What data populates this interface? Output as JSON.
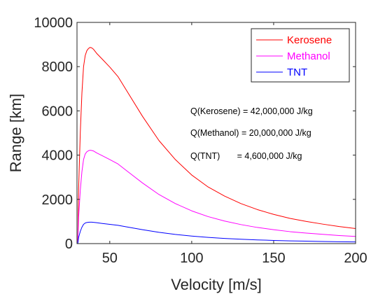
{
  "chart_data": {
    "type": "line",
    "xlabel": "Velocity [m/s]",
    "ylabel": "Range [km]",
    "xlim": [
      30,
      200
    ],
    "ylim": [
      0,
      10000
    ],
    "xticks": [
      50,
      100,
      150,
      200
    ],
    "yticks": [
      0,
      2000,
      4000,
      6000,
      8000,
      10000
    ],
    "grid": false,
    "legend_position": "top-right",
    "series": [
      {
        "name": "Kerosene",
        "color": "#ff0000",
        "x": [
          30.5,
          31,
          32,
          33,
          34,
          35,
          36,
          37,
          38,
          39,
          40,
          42,
          45,
          50,
          55,
          60,
          70,
          80,
          90,
          100,
          110,
          120,
          130,
          140,
          150,
          160,
          170,
          180,
          190,
          200
        ],
        "y": [
          100,
          2500,
          5000,
          6800,
          8000,
          8500,
          8720,
          8820,
          8870,
          8850,
          8790,
          8600,
          8370,
          7980,
          7550,
          6950,
          5750,
          4660,
          3800,
          3100,
          2560,
          2150,
          1810,
          1540,
          1320,
          1140,
          1000,
          880,
          770,
          680
        ]
      },
      {
        "name": "Methanol",
        "color": "#ff00ff",
        "x": [
          30.5,
          31,
          32,
          33,
          34,
          35,
          36,
          37,
          38,
          39,
          40,
          42,
          45,
          50,
          55,
          60,
          70,
          80,
          90,
          100,
          110,
          120,
          130,
          140,
          150,
          160,
          170,
          180,
          190,
          200
        ],
        "y": [
          50,
          1200,
          2400,
          3250,
          3800,
          4050,
          4150,
          4200,
          4220,
          4210,
          4190,
          4100,
          3990,
          3800,
          3600,
          3310,
          2740,
          2220,
          1810,
          1480,
          1220,
          1020,
          860,
          730,
          630,
          540,
          475,
          420,
          365,
          325
        ]
      },
      {
        "name": "TNT",
        "color": "#0000ff",
        "x": [
          30.5,
          31,
          32,
          33,
          34,
          35,
          36,
          37,
          38,
          39,
          40,
          42,
          45,
          50,
          55,
          60,
          70,
          80,
          90,
          100,
          110,
          120,
          130,
          140,
          150,
          160,
          170,
          180,
          190,
          200
        ],
        "y": [
          10,
          280,
          550,
          740,
          870,
          930,
          955,
          965,
          970,
          968,
          963,
          945,
          915,
          870,
          825,
          760,
          630,
          510,
          415,
          340,
          280,
          235,
          198,
          168,
          144,
          124,
          109,
          96,
          84,
          74
        ]
      }
    ],
    "annotations": [
      "Q(Kerosene) = 42,000,000 J/kg",
      "Q(Methanol) = 20,000,000 J/kg",
      "Q(TNT)       = 4,600,000 J/kg"
    ]
  }
}
